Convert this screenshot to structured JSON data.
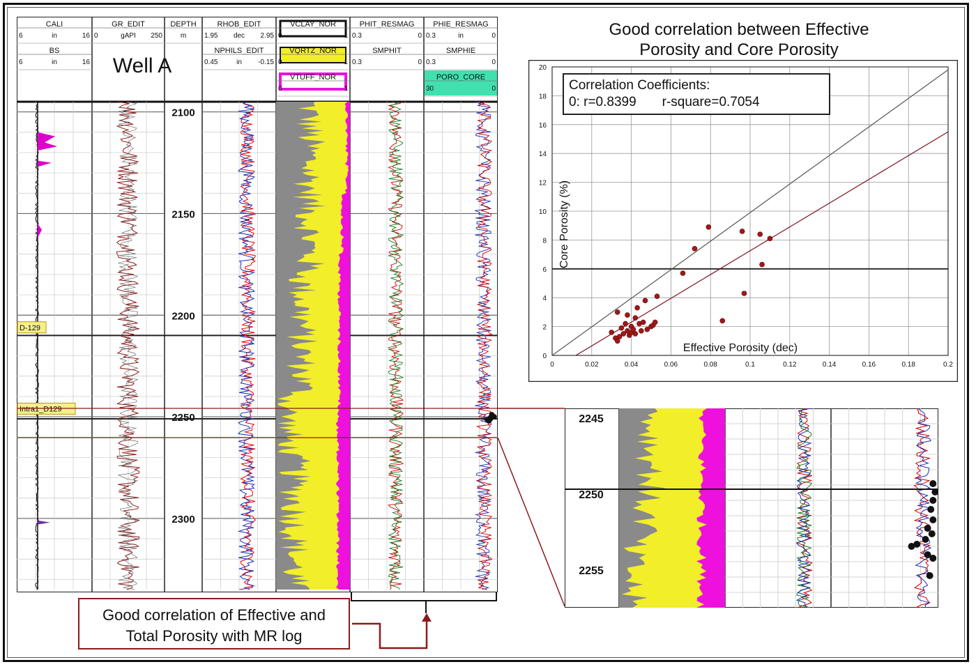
{
  "well_log": {
    "well_name": "Well A",
    "tracks": [
      {
        "id": "cali",
        "curves": [
          {
            "name": "CALI",
            "min": "6",
            "unit": "in",
            "max": "16"
          },
          {
            "name": "BS",
            "min": "6",
            "unit": "in",
            "max": "16"
          }
        ]
      },
      {
        "id": "gr",
        "curves": [
          {
            "name": "GR_EDIT",
            "min": "0",
            "unit": "gAPI",
            "max": "250"
          }
        ]
      },
      {
        "id": "depth",
        "curves": [
          {
            "name": "DEPTH",
            "min": "",
            "unit": "m",
            "max": ""
          }
        ]
      },
      {
        "id": "dens",
        "curves": [
          {
            "name": "RHOB_EDIT",
            "min": "1.95",
            "unit": "dec",
            "max": "2.95"
          },
          {
            "name": "NPHILS_EDIT",
            "min": "0.45",
            "unit": "in",
            "max": "-0.15"
          }
        ]
      },
      {
        "id": "lith",
        "curves": [
          {
            "name": "VCLAY_NOR",
            "min": "0",
            "unit": "",
            "max": "1"
          },
          {
            "name": "VQRTZ_NOR",
            "min": "0",
            "unit": "",
            "max": "1"
          },
          {
            "name": "VTUFF_NOR",
            "min": "0",
            "unit": "",
            "max": "1"
          }
        ]
      },
      {
        "id": "phit",
        "curves": [
          {
            "name": "PHIT_RESMAG",
            "min": "0.3",
            "unit": "",
            "max": "0"
          },
          {
            "name": "SMPHIT",
            "min": "0.3",
            "unit": "",
            "max": "0"
          }
        ]
      },
      {
        "id": "phie",
        "curves": [
          {
            "name": "PHIE_RESMAG",
            "min": "0.3",
            "unit": "in",
            "max": "0"
          },
          {
            "name": "SMPHIE",
            "min": "0.3",
            "unit": "",
            "max": "0"
          },
          {
            "name": "PORO_CORE",
            "min": "30",
            "unit": "",
            "max": "0"
          }
        ]
      }
    ],
    "depth_labels": [
      "2100",
      "2150",
      "2200",
      "2250",
      "2300"
    ],
    "markers": [
      "D-129",
      "Intra1_D129"
    ],
    "colors": {
      "clay": "#8a8a8a",
      "quartz": "#f2ee2a",
      "tuff": "#ee11dd",
      "core_header": "#40e0b0",
      "caliper_fill": "#dd00cc",
      "callout_line": "#8b1a1a"
    }
  },
  "callout_bottom": {
    "line1": "Good correlation of Effective and",
    "line2": "Total Porosity with MR log"
  },
  "crossplot": {
    "title_line1": "Good correlation between Effective",
    "title_line2": "Porosity and Core Porosity",
    "stats_line1": "Correlation Coefficients:",
    "stats_line2": "0: r=0.8399       r-square=0.7054"
  },
  "chart_data": {
    "type": "scatter",
    "title": "Good correlation between Effective Porosity and Core Porosity",
    "xlabel": "Effective Porosity (dec)",
    "ylabel": "Core Porosity (%)",
    "xlim": [
      0,
      0.2
    ],
    "ylim": [
      0,
      20
    ],
    "x_ticks": [
      "0",
      "0.02",
      "0.04",
      "0.06",
      "0.08",
      "0.1",
      "0.12",
      "0.14",
      "0.16",
      "0.18",
      "0.2"
    ],
    "y_ticks": [
      "0",
      "2",
      "4",
      "6",
      "8",
      "10",
      "12",
      "14",
      "16",
      "18",
      "20"
    ],
    "grid": true,
    "points": [
      {
        "x": 0.03,
        "y": 1.6
      },
      {
        "x": 0.032,
        "y": 1.2
      },
      {
        "x": 0.033,
        "y": 1.0
      },
      {
        "x": 0.034,
        "y": 1.3
      },
      {
        "x": 0.035,
        "y": 1.9
      },
      {
        "x": 0.036,
        "y": 1.5
      },
      {
        "x": 0.037,
        "y": 2.2
      },
      {
        "x": 0.038,
        "y": 1.7
      },
      {
        "x": 0.039,
        "y": 1.4
      },
      {
        "x": 0.04,
        "y": 2.0
      },
      {
        "x": 0.04,
        "y": 1.6
      },
      {
        "x": 0.041,
        "y": 1.8
      },
      {
        "x": 0.042,
        "y": 1.5
      },
      {
        "x": 0.042,
        "y": 2.6
      },
      {
        "x": 0.043,
        "y": 3.3
      },
      {
        "x": 0.044,
        "y": 2.2
      },
      {
        "x": 0.045,
        "y": 1.7
      },
      {
        "x": 0.046,
        "y": 2.3
      },
      {
        "x": 0.047,
        "y": 3.8
      },
      {
        "x": 0.048,
        "y": 1.8
      },
      {
        "x": 0.05,
        "y": 2.0
      },
      {
        "x": 0.051,
        "y": 2.1
      },
      {
        "x": 0.052,
        "y": 2.3
      },
      {
        "x": 0.053,
        "y": 4.1
      },
      {
        "x": 0.033,
        "y": 3.0
      },
      {
        "x": 0.038,
        "y": 2.8
      },
      {
        "x": 0.066,
        "y": 5.7
      },
      {
        "x": 0.072,
        "y": 7.4
      },
      {
        "x": 0.079,
        "y": 8.9
      },
      {
        "x": 0.086,
        "y": 2.4
      },
      {
        "x": 0.096,
        "y": 8.6
      },
      {
        "x": 0.097,
        "y": 4.3
      },
      {
        "x": 0.105,
        "y": 8.4
      },
      {
        "x": 0.106,
        "y": 6.3
      },
      {
        "x": 0.11,
        "y": 8.1
      }
    ],
    "lines": [
      {
        "name": "",
        "from": [
          0,
          0
        ],
        "to": [
          0.2,
          19.8
        ]
      },
      {
        "name": "",
        "from": [
          0.012,
          0
        ],
        "to": [
          0.2,
          15.5
        ]
      }
    ],
    "horizontal_line_y": 6
  },
  "zoom_panel": {
    "depth_labels": [
      "2245",
      "2250",
      "2255"
    ]
  }
}
